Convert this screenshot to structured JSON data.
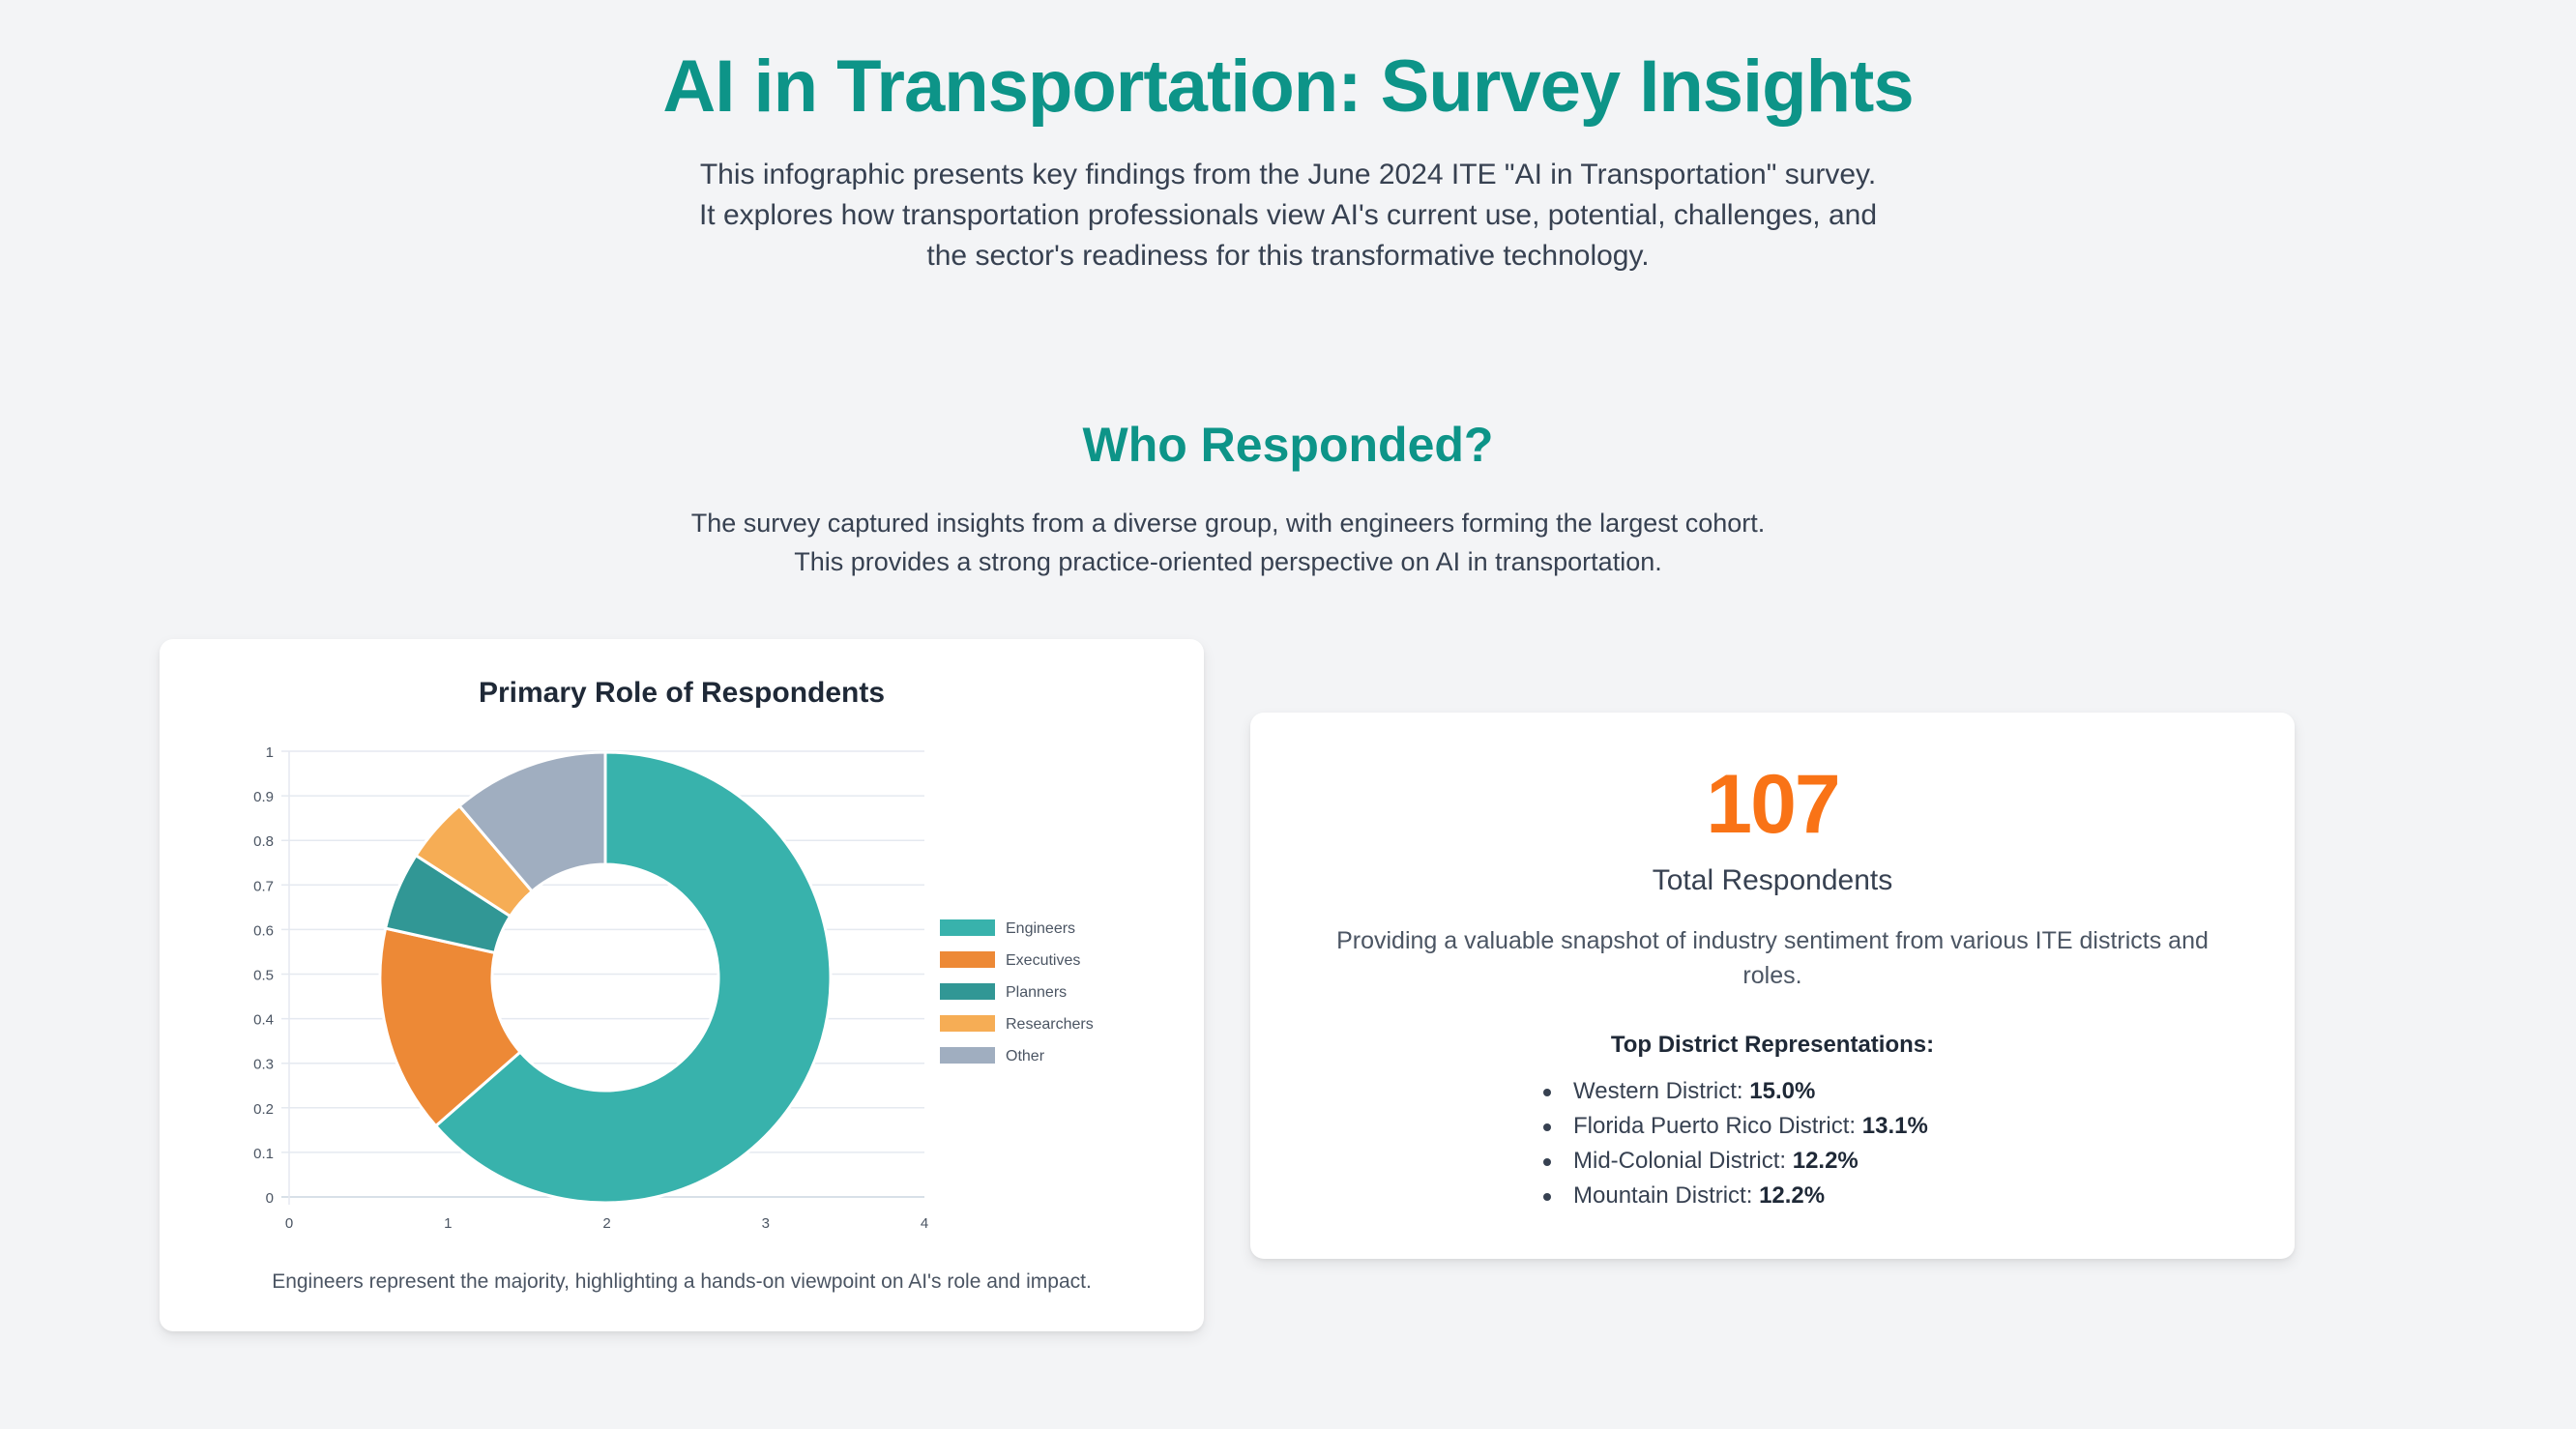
{
  "header": {
    "title": "AI in Transportation: Survey Insights",
    "intro": "This infographic presents key findings from the June 2024 ITE \"AI in Transportation\" survey. It explores how transportation professionals view AI's current use, potential, challenges, and the sector's readiness for this transformative technology."
  },
  "section": {
    "title": "Who Responded?",
    "description_line1": "The survey captured insights from a diverse group, with engineers forming the largest cohort.",
    "description_line2": "This provides a strong practice-oriented perspective on AI in transportation."
  },
  "chart_card": {
    "title": "Primary Role of Respondents",
    "caption": "Engineers represent the majority, highlighting a hands-on viewpoint on AI's role and impact."
  },
  "stats_card": {
    "total": "107",
    "total_label": "Total Respondents",
    "description": "Providing a valuable snapshot of industry sentiment from various ITE districts and roles.",
    "districts_heading": "Top District Representations:",
    "districts": [
      {
        "name": "Western District:",
        "value": "15.0%"
      },
      {
        "name": "Florida Puerto Rico District:",
        "value": "13.1%"
      },
      {
        "name": "Mid-Colonial District:",
        "value": "12.2%"
      },
      {
        "name": "Mountain District:",
        "value": "12.2%"
      }
    ]
  },
  "colors": {
    "accent_teal": "#0d9488",
    "accent_orange": "#f97316",
    "background": "#f3f4f6"
  },
  "chart_data": {
    "type": "pie",
    "variant": "doughnut",
    "title": "Primary Role of Respondents",
    "categories": [
      "Engineers",
      "Executives",
      "Planners",
      "Researchers",
      "Other"
    ],
    "values": [
      68,
      16,
      6,
      5,
      12
    ],
    "percent_estimate": [
      63.6,
      15.0,
      5.6,
      4.7,
      11.2
    ],
    "colors": [
      "#38b2ac",
      "#ed8936",
      "#319795",
      "#f6ad55",
      "#a0aec0"
    ],
    "legend_position": "right",
    "xlabel": "",
    "ylabel": "",
    "x_ticks": [
      "0",
      "1",
      "2",
      "3",
      "4"
    ],
    "y_ticks": [
      "0",
      "0.1",
      "0.2",
      "0.3",
      "0.4",
      "0.5",
      "0.6",
      "0.7",
      "0.8",
      "0.9",
      "1"
    ],
    "xlim": [
      0,
      4
    ],
    "ylim": [
      0,
      1
    ],
    "grid": true,
    "caption": "Engineers represent the majority, highlighting a hands-on viewpoint on AI's role and impact."
  }
}
